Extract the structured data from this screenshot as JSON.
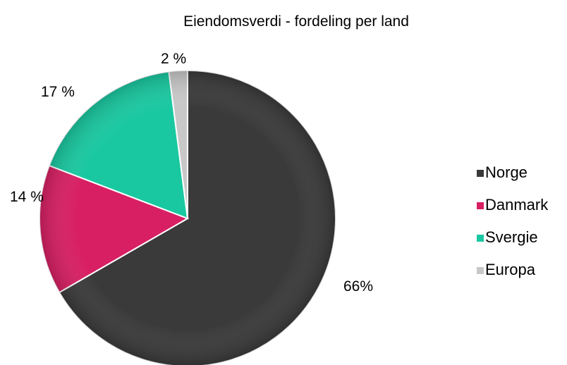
{
  "chart_data": {
    "type": "pie",
    "title": "Eiendomsverdi - fordeling per land",
    "categories": [
      "Norge",
      "Danmark",
      "Svergie",
      "Europa"
    ],
    "values": [
      66,
      14,
      17,
      2
    ],
    "data_labels": [
      "66%",
      "14 %",
      "17 %",
      "2 %"
    ],
    "colors": [
      "#3a3a3a",
      "#d81f63",
      "#19c8a0",
      "#c8c8c8"
    ],
    "legend_position": "right",
    "start_angle_deg": 0,
    "direction": "clockwise"
  }
}
